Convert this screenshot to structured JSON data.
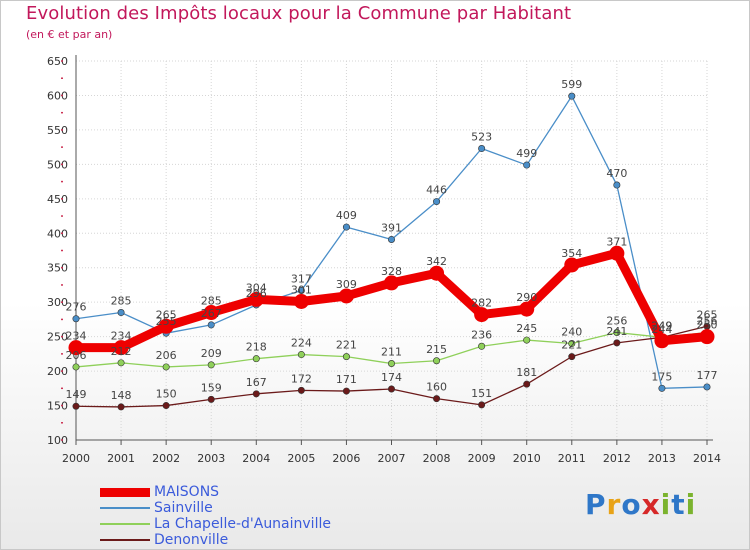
{
  "header": {
    "title": "Evolution des Impôts locaux pour la Commune par Habitant",
    "subtitle": "(en € et par an)"
  },
  "logo": {
    "text": "Proxiti",
    "colors": [
      "#2f77c8",
      "#e8a317",
      "#2f77c8",
      "#d62828",
      "#7bb32e",
      "#2f77c8",
      "#7bb32e"
    ]
  },
  "chart_data": {
    "type": "line",
    "title": "Evolution des Impôts locaux pour la Commune par Habitant",
    "subtitle": "(en € et par an)",
    "x": [
      2000,
      2001,
      2002,
      2003,
      2004,
      2005,
      2006,
      2007,
      2008,
      2009,
      2010,
      2011,
      2012,
      2013,
      2014
    ],
    "x_tick_labels": [
      "2000",
      "2001",
      "2002",
      "2003",
      "2004",
      "2005",
      "2006",
      "2007",
      "2008",
      "2009",
      "2010",
      "2011",
      "2012",
      "2013",
      "2014"
    ],
    "ylim": [
      100,
      650
    ],
    "y_ticks": [
      100,
      150,
      200,
      250,
      300,
      350,
      400,
      450,
      500,
      550,
      600,
      650
    ],
    "y_tick_labels": [
      "100",
      "150",
      "200",
      "250",
      "300",
      "350",
      "400",
      "450",
      "500",
      "550",
      "600",
      "650"
    ],
    "grid": true,
    "legend_position": "bottom-left",
    "series": [
      {
        "name": "Sainville",
        "color": "#4a8ec8",
        "values": [
          276,
          285,
          255,
          267,
          296,
          317,
          409,
          391,
          446,
          523,
          499,
          599,
          470,
          175,
          177
        ],
        "labels": [
          "276",
          "285",
          "255",
          "267",
          "296",
          "317",
          "409",
          "391",
          "446",
          "523",
          "499",
          "599",
          "470",
          "175",
          "177"
        ]
      },
      {
        "name": "La Chapelle-d'Aunainville",
        "color": "#8fd05a",
        "values": [
          206,
          212,
          206,
          209,
          218,
          224,
          221,
          211,
          215,
          236,
          245,
          240,
          256,
          249,
          256
        ],
        "labels": [
          "206",
          "212",
          "206",
          "209",
          "218",
          "224",
          "221",
          "211",
          "215",
          "236",
          "245",
          "240",
          "256",
          "249",
          "256"
        ]
      },
      {
        "name": "Denonville",
        "color": "#6b1a1a",
        "values": [
          149,
          148,
          150,
          159,
          167,
          172,
          171,
          174,
          160,
          151,
          181,
          221,
          241,
          249,
          265
        ],
        "labels": [
          "149",
          "148",
          "150",
          "159",
          "167",
          "172",
          "171",
          "174",
          "160",
          "151",
          "181",
          "221",
          "241",
          "249",
          "265"
        ]
      },
      {
        "name": "MAISONS",
        "color": "#ee0000",
        "values": [
          234,
          234,
          265,
          285,
          304,
          301,
          309,
          328,
          342,
          282,
          290,
          354,
          371,
          244,
          250
        ],
        "labels": [
          "234",
          "234",
          "265",
          "285",
          "304",
          "301",
          "309",
          "328",
          "342",
          "282",
          "290",
          "354",
          "371",
          "244",
          "250"
        ]
      }
    ],
    "legend": [
      {
        "name": "MAISONS",
        "color": "#ee0000"
      },
      {
        "name": "Sainville",
        "color": "#4a8ec8"
      },
      {
        "name": "La Chapelle-d'Aunainville",
        "color": "#8fd05a"
      },
      {
        "name": "Denonville",
        "color": "#6b1a1a"
      }
    ]
  }
}
